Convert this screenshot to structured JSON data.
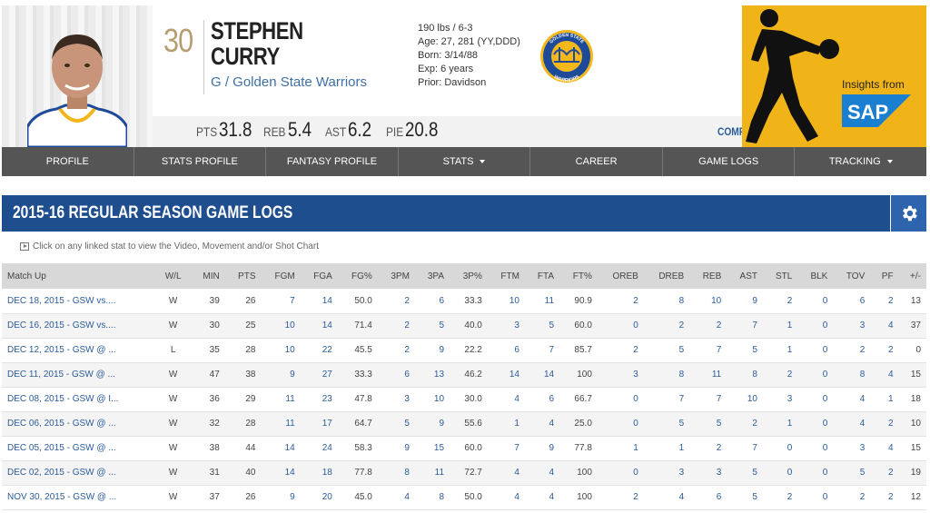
{
  "player": {
    "number": "30",
    "first_name": "STEPHEN",
    "last_name": "CURRY",
    "position_team": "G / Golden State Warriors",
    "bio": [
      "190 lbs / 6-3",
      "Age: 27, 281 (YY,DDD)",
      "Born: 3/14/88",
      "Exp: 6 years",
      "Prior: Davidson"
    ],
    "team_logo": {
      "top": "GOLDEN STATE",
      "bottom": "WARRIORS"
    }
  },
  "summary_stats": [
    {
      "label": "PTS",
      "value": "31.8"
    },
    {
      "label": "REB",
      "value": "5.4"
    },
    {
      "label": "AST",
      "value": "6.2"
    },
    {
      "label": "PIE",
      "value": "20.8"
    }
  ],
  "compare_label": "COMPARE PLAYER",
  "sponsor": {
    "text": "Insights from",
    "logo": "SAP"
  },
  "nav": [
    {
      "label": "PROFILE",
      "dropdown": false
    },
    {
      "label": "STATS PROFILE",
      "dropdown": false
    },
    {
      "label": "FANTASY PROFILE",
      "dropdown": false
    },
    {
      "label": "STATS",
      "dropdown": true
    },
    {
      "label": "CAREER",
      "dropdown": false
    },
    {
      "label": "GAME LOGS",
      "dropdown": false
    },
    {
      "label": "TRACKING",
      "dropdown": true
    }
  ],
  "section_title": "2015-16 REGULAR SEASON GAME LOGS",
  "hint": "Click on any linked stat to view the Video, Movement and/or Shot Chart",
  "table": {
    "headers": [
      "Match Up",
      "W/L",
      "MIN",
      "PTS",
      "FGM",
      "FGA",
      "FG%",
      "3PM",
      "3PA",
      "3P%",
      "FTM",
      "FTA",
      "FT%",
      "OREB",
      "DREB",
      "REB",
      "AST",
      "STL",
      "BLK",
      "TOV",
      "PF",
      "+/-"
    ],
    "rows": [
      [
        "DEC 18, 2015 - GSW vs....",
        "W",
        "39",
        "26",
        "7",
        "14",
        "50.0",
        "2",
        "6",
        "33.3",
        "10",
        "11",
        "90.9",
        "2",
        "8",
        "10",
        "9",
        "2",
        "0",
        "6",
        "2",
        "13"
      ],
      [
        "DEC 16, 2015 - GSW vs....",
        "W",
        "30",
        "25",
        "10",
        "14",
        "71.4",
        "2",
        "5",
        "40.0",
        "3",
        "5",
        "60.0",
        "0",
        "2",
        "2",
        "7",
        "1",
        "0",
        "3",
        "4",
        "37"
      ],
      [
        "DEC 12, 2015 - GSW @ ...",
        "L",
        "35",
        "28",
        "10",
        "22",
        "45.5",
        "2",
        "9",
        "22.2",
        "6",
        "7",
        "85.7",
        "2",
        "5",
        "7",
        "5",
        "1",
        "0",
        "2",
        "2",
        "0"
      ],
      [
        "DEC 11, 2015 - GSW @ ...",
        "W",
        "47",
        "38",
        "9",
        "27",
        "33.3",
        "6",
        "13",
        "46.2",
        "14",
        "14",
        "100",
        "3",
        "8",
        "11",
        "8",
        "2",
        "0",
        "8",
        "4",
        "15"
      ],
      [
        "DEC 08, 2015 - GSW @ I...",
        "W",
        "36",
        "29",
        "11",
        "23",
        "47.8",
        "3",
        "10",
        "30.0",
        "4",
        "6",
        "66.7",
        "0",
        "7",
        "7",
        "10",
        "3",
        "0",
        "4",
        "1",
        "18"
      ],
      [
        "DEC 06, 2015 - GSW @ ...",
        "W",
        "32",
        "28",
        "11",
        "17",
        "64.7",
        "5",
        "9",
        "55.6",
        "1",
        "4",
        "25.0",
        "0",
        "5",
        "5",
        "2",
        "1",
        "0",
        "4",
        "2",
        "10"
      ],
      [
        "DEC 05, 2015 - GSW @ ...",
        "W",
        "38",
        "44",
        "14",
        "24",
        "58.3",
        "9",
        "15",
        "60.0",
        "7",
        "9",
        "77.8",
        "1",
        "1",
        "2",
        "7",
        "0",
        "0",
        "3",
        "4",
        "15"
      ],
      [
        "DEC 02, 2015 - GSW @ ...",
        "W",
        "31",
        "40",
        "14",
        "18",
        "77.8",
        "8",
        "11",
        "72.7",
        "4",
        "4",
        "100",
        "0",
        "3",
        "3",
        "5",
        "0",
        "0",
        "5",
        "2",
        "19"
      ],
      [
        "NOV 30, 2015 - GSW @ ...",
        "W",
        "37",
        "26",
        "9",
        "20",
        "45.0",
        "4",
        "8",
        "50.0",
        "4",
        "4",
        "100",
        "2",
        "4",
        "6",
        "5",
        "2",
        "0",
        "2",
        "2",
        "12"
      ]
    ]
  }
}
